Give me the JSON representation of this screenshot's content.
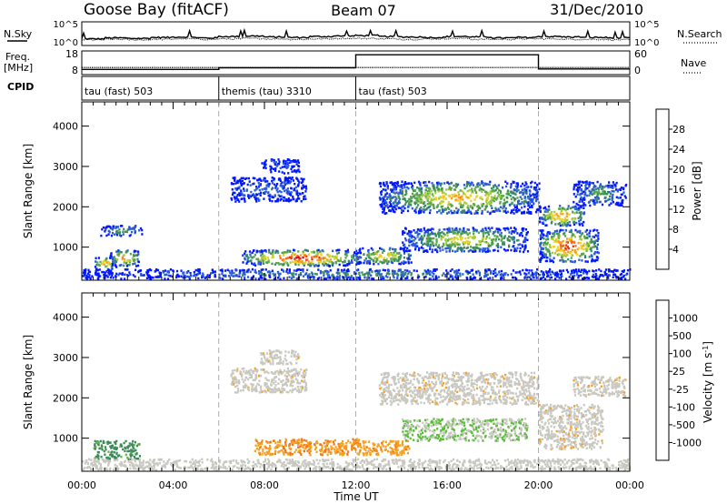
{
  "header": {
    "station": "Goose Bay (fitACF)",
    "beam": "Beam 07",
    "date": "31/Dec/2010"
  },
  "colors": {
    "power_scale": [
      "#0018ff",
      "#2a5ad8",
      "#3e8c5e",
      "#5aa64a",
      "#a6cc3c",
      "#f0d02a",
      "#f5a020",
      "#f07018",
      "#e83010",
      "#d00000"
    ],
    "velocity_scale": [
      "#1830c8",
      "#2c5ab8",
      "#3a8a5a",
      "#5aba3a",
      "#c8c8c0",
      "#f5a020",
      "#f07818",
      "#e84010",
      "#d00000"
    ],
    "ground_scatter": "#b4b4b4",
    "trace": "#000000"
  },
  "chart_data": [
    {
      "type": "line",
      "panel": "noise",
      "left_label": "N.Sky",
      "right_label": "N.Search",
      "left_ticks": [
        "10^5",
        "10^0"
      ],
      "right_ticks": [
        "10^5",
        "10^0"
      ],
      "series": [
        {
          "values": [
            1.4,
            1.6,
            1.5,
            1.7,
            1.8,
            1.6,
            1.9,
            2.0,
            1.8,
            1.7,
            1.9,
            2.0,
            2.1,
            1.9,
            1.8,
            1.7,
            1.9,
            1.8,
            1.6,
            1.7,
            1.9,
            1.8,
            1.7,
            1.6
          ]
        },
        {
          "values": [
            1.2,
            1.3,
            1.2,
            1.3,
            1.4,
            1.3,
            1.4,
            1.5,
            1.4,
            1.3,
            1.4,
            1.5,
            1.5,
            1.4,
            1.3,
            1.4,
            1.5,
            1.3,
            1.3,
            1.4,
            1.4,
            1.3,
            1.3,
            1.2
          ]
        }
      ],
      "ylim": [
        0,
        5
      ]
    },
    {
      "type": "line",
      "panel": "frequency_nave",
      "left_label": "Freq. [MHz]",
      "right_label": "Nave",
      "left_ticks": [
        "18",
        "8"
      ],
      "right_ticks": [
        "60",
        "0"
      ],
      "freq_steps": [
        {
          "x0": 0.0,
          "x1": 6.0,
          "mhz": 10.2
        },
        {
          "x0": 6.0,
          "x1": 12.0,
          "mhz": 10.9
        },
        {
          "x0": 12.0,
          "x1": 20.0,
          "mhz": 16.4
        },
        {
          "x0": 20.0,
          "x1": 24.0,
          "mhz": 10.4
        }
      ],
      "nave": 18
    },
    {
      "type": "table",
      "panel": "cpid",
      "label": "CPID",
      "segments": [
        {
          "x0": 0.0,
          "x1": 6.0,
          "name": "tau (fast) 503"
        },
        {
          "x0": 6.0,
          "x1": 12.0,
          "name": "themis (tau) 3310"
        },
        {
          "x0": 12.0,
          "x1": 24.0,
          "name": "tau (fast) 503"
        }
      ]
    },
    {
      "type": "heatmap",
      "panel": "power",
      "ylabel": "Slant Range [km]",
      "yticks": [
        1000,
        2000,
        3000,
        4000
      ],
      "ylim": [
        180,
        4600
      ],
      "colorbar": {
        "label": "Power [dB]",
        "ticks": [
          "4",
          "8",
          "12",
          "16",
          "20",
          "24",
          "28"
        ],
        "range": [
          0,
          30
        ]
      },
      "regions": [
        {
          "t0": 0.5,
          "t1": 1.5,
          "r0": 420,
          "r1": 720,
          "peak": 22
        },
        {
          "t0": 1.2,
          "t1": 2.5,
          "r0": 500,
          "r1": 900,
          "peak": 24
        },
        {
          "t0": 0.8,
          "t1": 2.6,
          "r0": 1250,
          "r1": 1500,
          "peak": 10
        },
        {
          "t0": 6.5,
          "t1": 9.8,
          "r0": 2100,
          "r1": 2700,
          "peak": 6
        },
        {
          "t0": 7.8,
          "t1": 9.5,
          "r0": 2800,
          "r1": 3150,
          "peak": 5
        },
        {
          "t0": 7.0,
          "t1": 12.2,
          "r0": 500,
          "r1": 900,
          "peak": 30
        },
        {
          "t0": 12.0,
          "t1": 14.4,
          "r0": 550,
          "r1": 950,
          "peak": 20
        },
        {
          "t0": 13.0,
          "t1": 20.0,
          "r0": 1800,
          "r1": 2600,
          "peak": 20
        },
        {
          "t0": 14.0,
          "t1": 19.5,
          "r0": 850,
          "r1": 1450,
          "peak": 18
        },
        {
          "t0": 20.0,
          "t1": 22.6,
          "r0": 600,
          "r1": 1400,
          "peak": 28
        },
        {
          "t0": 20.0,
          "t1": 22.0,
          "r0": 1500,
          "r1": 2000,
          "peak": 24
        },
        {
          "t0": 21.5,
          "t1": 23.8,
          "r0": 2000,
          "r1": 2600,
          "peak": 10
        },
        {
          "t0": 0.0,
          "t1": 24.0,
          "r0": 180,
          "r1": 420,
          "peak": 8
        }
      ]
    },
    {
      "type": "heatmap",
      "panel": "velocity",
      "ylabel": "Slant Range [km]",
      "yticks": [
        1000,
        2000,
        3000,
        4000
      ],
      "ylim": [
        180,
        4600
      ],
      "xticks": [
        "00:00",
        "04:00",
        "08:00",
        "12:00",
        "16:00",
        "20:00",
        "00:00"
      ],
      "xlim": [
        0,
        24
      ],
      "xlabel": "Time UT",
      "colorbar": {
        "label": "Velocity [m s^-1]",
        "ticks": [
          "1000",
          "500",
          "100",
          "25",
          "-25",
          "-100",
          "-500",
          "-1000"
        ]
      },
      "regions": [
        {
          "t0": 0.5,
          "t1": 2.5,
          "r0": 450,
          "r1": 900,
          "vel": 120
        },
        {
          "t0": 6.5,
          "t1": 9.8,
          "r0": 2100,
          "r1": 2700,
          "vel": 0
        },
        {
          "t0": 7.8,
          "t1": 9.5,
          "r0": 2800,
          "r1": 3150,
          "vel": 0
        },
        {
          "t0": 7.5,
          "t1": 12.2,
          "r0": 550,
          "r1": 950,
          "vel": -90
        },
        {
          "t0": 12.0,
          "t1": 14.3,
          "r0": 550,
          "r1": 900,
          "vel": -80
        },
        {
          "t0": 13.0,
          "t1": 20.0,
          "r0": 1800,
          "r1": 2600,
          "vel": 0
        },
        {
          "t0": 14.0,
          "t1": 19.5,
          "r0": 900,
          "r1": 1450,
          "vel": 60
        },
        {
          "t0": 20.0,
          "t1": 22.8,
          "r0": 700,
          "r1": 1800,
          "vel": 0
        },
        {
          "t0": 21.5,
          "t1": 23.8,
          "r0": 2000,
          "r1": 2500,
          "vel": 0
        },
        {
          "t0": 0.0,
          "t1": 24.0,
          "r0": 180,
          "r1": 450,
          "vel": 30
        }
      ]
    }
  ]
}
